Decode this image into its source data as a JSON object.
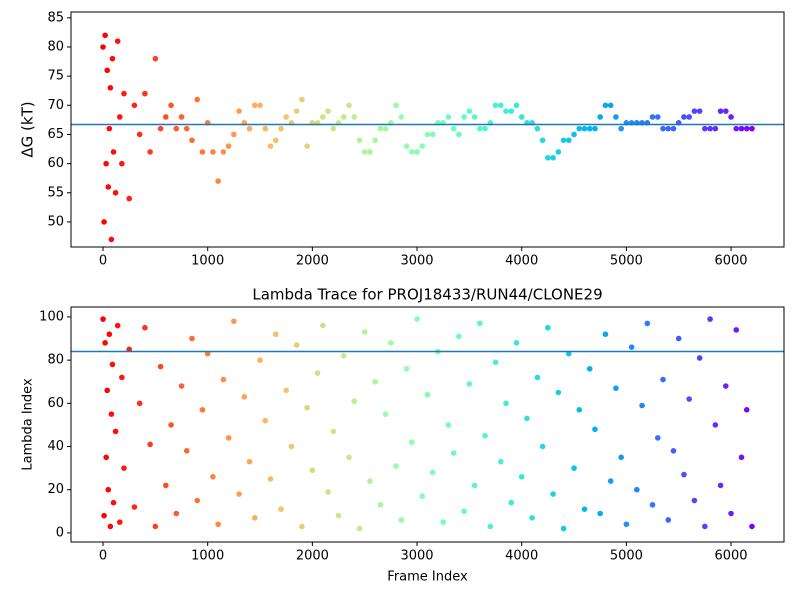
{
  "chart_data": [
    {
      "type": "scatter",
      "ylabel": "ΔG (kT)",
      "colormap": "rainbow_r",
      "hline": 66.7,
      "hline_color": "#1f77b4",
      "xlim": [
        -306,
        6506
      ],
      "ylim": [
        45.7,
        86.0
      ],
      "xticks": [
        0,
        1000,
        2000,
        3000,
        4000,
        5000,
        6000
      ],
      "yticks": [
        50,
        55,
        60,
        65,
        70,
        75,
        80,
        85
      ],
      "x": [
        0,
        10,
        20,
        30,
        40,
        50,
        60,
        70,
        80,
        90,
        100,
        120,
        140,
        160,
        180,
        200,
        250,
        300,
        350,
        400,
        450,
        500,
        550,
        600,
        650,
        700,
        750,
        800,
        850,
        900,
        950,
        1000,
        1050,
        1100,
        1150,
        1200,
        1250,
        1300,
        1350,
        1400,
        1450,
        1500,
        1550,
        1600,
        1650,
        1700,
        1750,
        1800,
        1850,
        1900,
        1950,
        2000,
        2050,
        2100,
        2150,
        2200,
        2250,
        2300,
        2350,
        2400,
        2450,
        2500,
        2550,
        2600,
        2650,
        2700,
        2750,
        2800,
        2850,
        2900,
        2950,
        3000,
        3050,
        3100,
        3150,
        3200,
        3250,
        3300,
        3350,
        3400,
        3450,
        3500,
        3550,
        3600,
        3650,
        3700,
        3750,
        3800,
        3850,
        3900,
        3950,
        4000,
        4050,
        4100,
        4150,
        4200,
        4250,
        4300,
        4350,
        4400,
        4450,
        4500,
        4550,
        4600,
        4650,
        4700,
        4750,
        4800,
        4850,
        4900,
        4950,
        5000,
        5050,
        5100,
        5150,
        5200,
        5250,
        5300,
        5350,
        5400,
        5450,
        5500,
        5550,
        5600,
        5650,
        5700,
        5750,
        5800,
        5850,
        5900,
        5950,
        6000,
        6050,
        6100,
        6150,
        6200
      ],
      "values": [
        80,
        50,
        82,
        60,
        76,
        56,
        66,
        73,
        47,
        78,
        62,
        55,
        81,
        68,
        60,
        72,
        54,
        70,
        65,
        72,
        62,
        78,
        66,
        68,
        70,
        66,
        68,
        66,
        64,
        71,
        62,
        67,
        62,
        57,
        62,
        63,
        65,
        69,
        67,
        66,
        70,
        70,
        66,
        63,
        64,
        66,
        68,
        67,
        69,
        71,
        63,
        67,
        67,
        68,
        69,
        66,
        67,
        68,
        70,
        68,
        64,
        62,
        62,
        64,
        66,
        66,
        67,
        70,
        68,
        63,
        62,
        62,
        63,
        65,
        65,
        67,
        67,
        68,
        66,
        65,
        68,
        69,
        68,
        66,
        66,
        67,
        70,
        70,
        69,
        69,
        70,
        68,
        67,
        67,
        66,
        64,
        61,
        61,
        62,
        64,
        64,
        65,
        66,
        66,
        66,
        66,
        68,
        70,
        70,
        68,
        66,
        67,
        67,
        67,
        67,
        67,
        68,
        68,
        66,
        66,
        66,
        67,
        68,
        68,
        69,
        69,
        66,
        66,
        66,
        69,
        69,
        68,
        66,
        66,
        66,
        66
      ]
    },
    {
      "type": "scatter",
      "title": "Lambda Trace for PROJ18433/RUN44/CLONE29",
      "xlabel": "Frame Index",
      "ylabel": "Lambda Index",
      "colormap": "rainbow_r",
      "hline": 84,
      "hline_color": "#1f77b4",
      "xlim": [
        -306,
        6506
      ],
      "ylim": [
        -4.2,
        104.6
      ],
      "xticks": [
        0,
        1000,
        2000,
        3000,
        4000,
        5000,
        6000
      ],
      "yticks": [
        0,
        20,
        40,
        60,
        80,
        100
      ],
      "x": [
        0,
        10,
        20,
        30,
        40,
        50,
        60,
        70,
        80,
        90,
        100,
        120,
        140,
        160,
        180,
        200,
        250,
        300,
        350,
        400,
        450,
        500,
        550,
        600,
        650,
        700,
        750,
        800,
        850,
        900,
        950,
        1000,
        1050,
        1100,
        1150,
        1200,
        1250,
        1300,
        1350,
        1400,
        1450,
        1500,
        1550,
        1600,
        1650,
        1700,
        1750,
        1800,
        1850,
        1900,
        1950,
        2000,
        2050,
        2100,
        2150,
        2200,
        2250,
        2300,
        2350,
        2400,
        2450,
        2500,
        2550,
        2600,
        2650,
        2700,
        2750,
        2800,
        2850,
        2900,
        2950,
        3000,
        3050,
        3100,
        3150,
        3200,
        3250,
        3300,
        3350,
        3400,
        3450,
        3500,
        3550,
        3600,
        3650,
        3700,
        3750,
        3800,
        3850,
        3900,
        3950,
        4000,
        4050,
        4100,
        4150,
        4200,
        4250,
        4300,
        4350,
        4400,
        4450,
        4500,
        4550,
        4600,
        4650,
        4700,
        4750,
        4800,
        4850,
        4900,
        4950,
        5000,
        5050,
        5100,
        5150,
        5200,
        5250,
        5300,
        5350,
        5400,
        5450,
        5500,
        5550,
        5600,
        5650,
        5700,
        5750,
        5800,
        5850,
        5900,
        5950,
        6000,
        6050,
        6100,
        6150,
        6200
      ],
      "values": [
        99,
        8,
        88,
        35,
        66,
        20,
        92,
        3,
        55,
        78,
        14,
        47,
        96,
        5,
        72,
        30,
        85,
        12,
        60,
        95,
        41,
        3,
        77,
        22,
        50,
        9,
        68,
        38,
        90,
        15,
        57,
        83,
        26,
        4,
        71,
        44,
        98,
        18,
        63,
        33,
        7,
        80,
        52,
        25,
        92,
        11,
        66,
        40,
        87,
        3,
        58,
        29,
        74,
        96,
        19,
        47,
        8,
        82,
        35,
        61,
        2,
        93,
        24,
        70,
        13,
        55,
        88,
        31,
        6,
        76,
        42,
        99,
        17,
        64,
        28,
        84,
        5,
        50,
        37,
        91,
        10,
        69,
        22,
        97,
        45,
        3,
        79,
        33,
        60,
        14,
        88,
        26,
        53,
        7,
        72,
        40,
        95,
        18,
        65,
        2,
        83,
        30,
        57,
        11,
        76,
        48,
        9,
        92,
        24,
        67,
        35,
        4,
        86,
        20,
        59,
        97,
        13,
        44,
        71,
        6,
        38,
        90,
        27,
        62,
        15,
        81,
        3,
        99,
        50,
        22,
        68,
        9,
        94,
        35,
        57,
        3
      ]
    }
  ]
}
